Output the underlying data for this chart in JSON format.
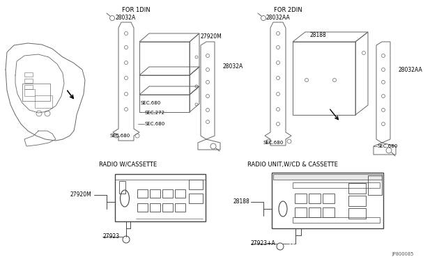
{
  "bg_color": "#ffffff",
  "line_color": "#666666",
  "labels": {
    "for_1din": "FOR 1DIN",
    "for_2din": "FOR 2DIN",
    "radio_cassette": "RADIO W/CASSETTE",
    "radio_cd": "RADIO UNIT,W/CD & CASSETTE",
    "p28032A_1": "28032A",
    "p28032A_2": "28032A",
    "p28032AA_1": "28032AA",
    "p28032AA_2": "28032AA",
    "p27920M_1": "27920M",
    "p27920M_2": "27920M",
    "p28188_1": "28188",
    "p28188_2": "28188",
    "sec680_1": "SEC.680",
    "sec680_2": "SEC.680",
    "sec680_3": "SEC.680",
    "sec680_4": "SEC.680",
    "sec680_5": "SEC.680",
    "sec272": "SEC.272",
    "p27923_1": "27923",
    "p27923_2": "27923+A",
    "jp": "JP800085"
  }
}
